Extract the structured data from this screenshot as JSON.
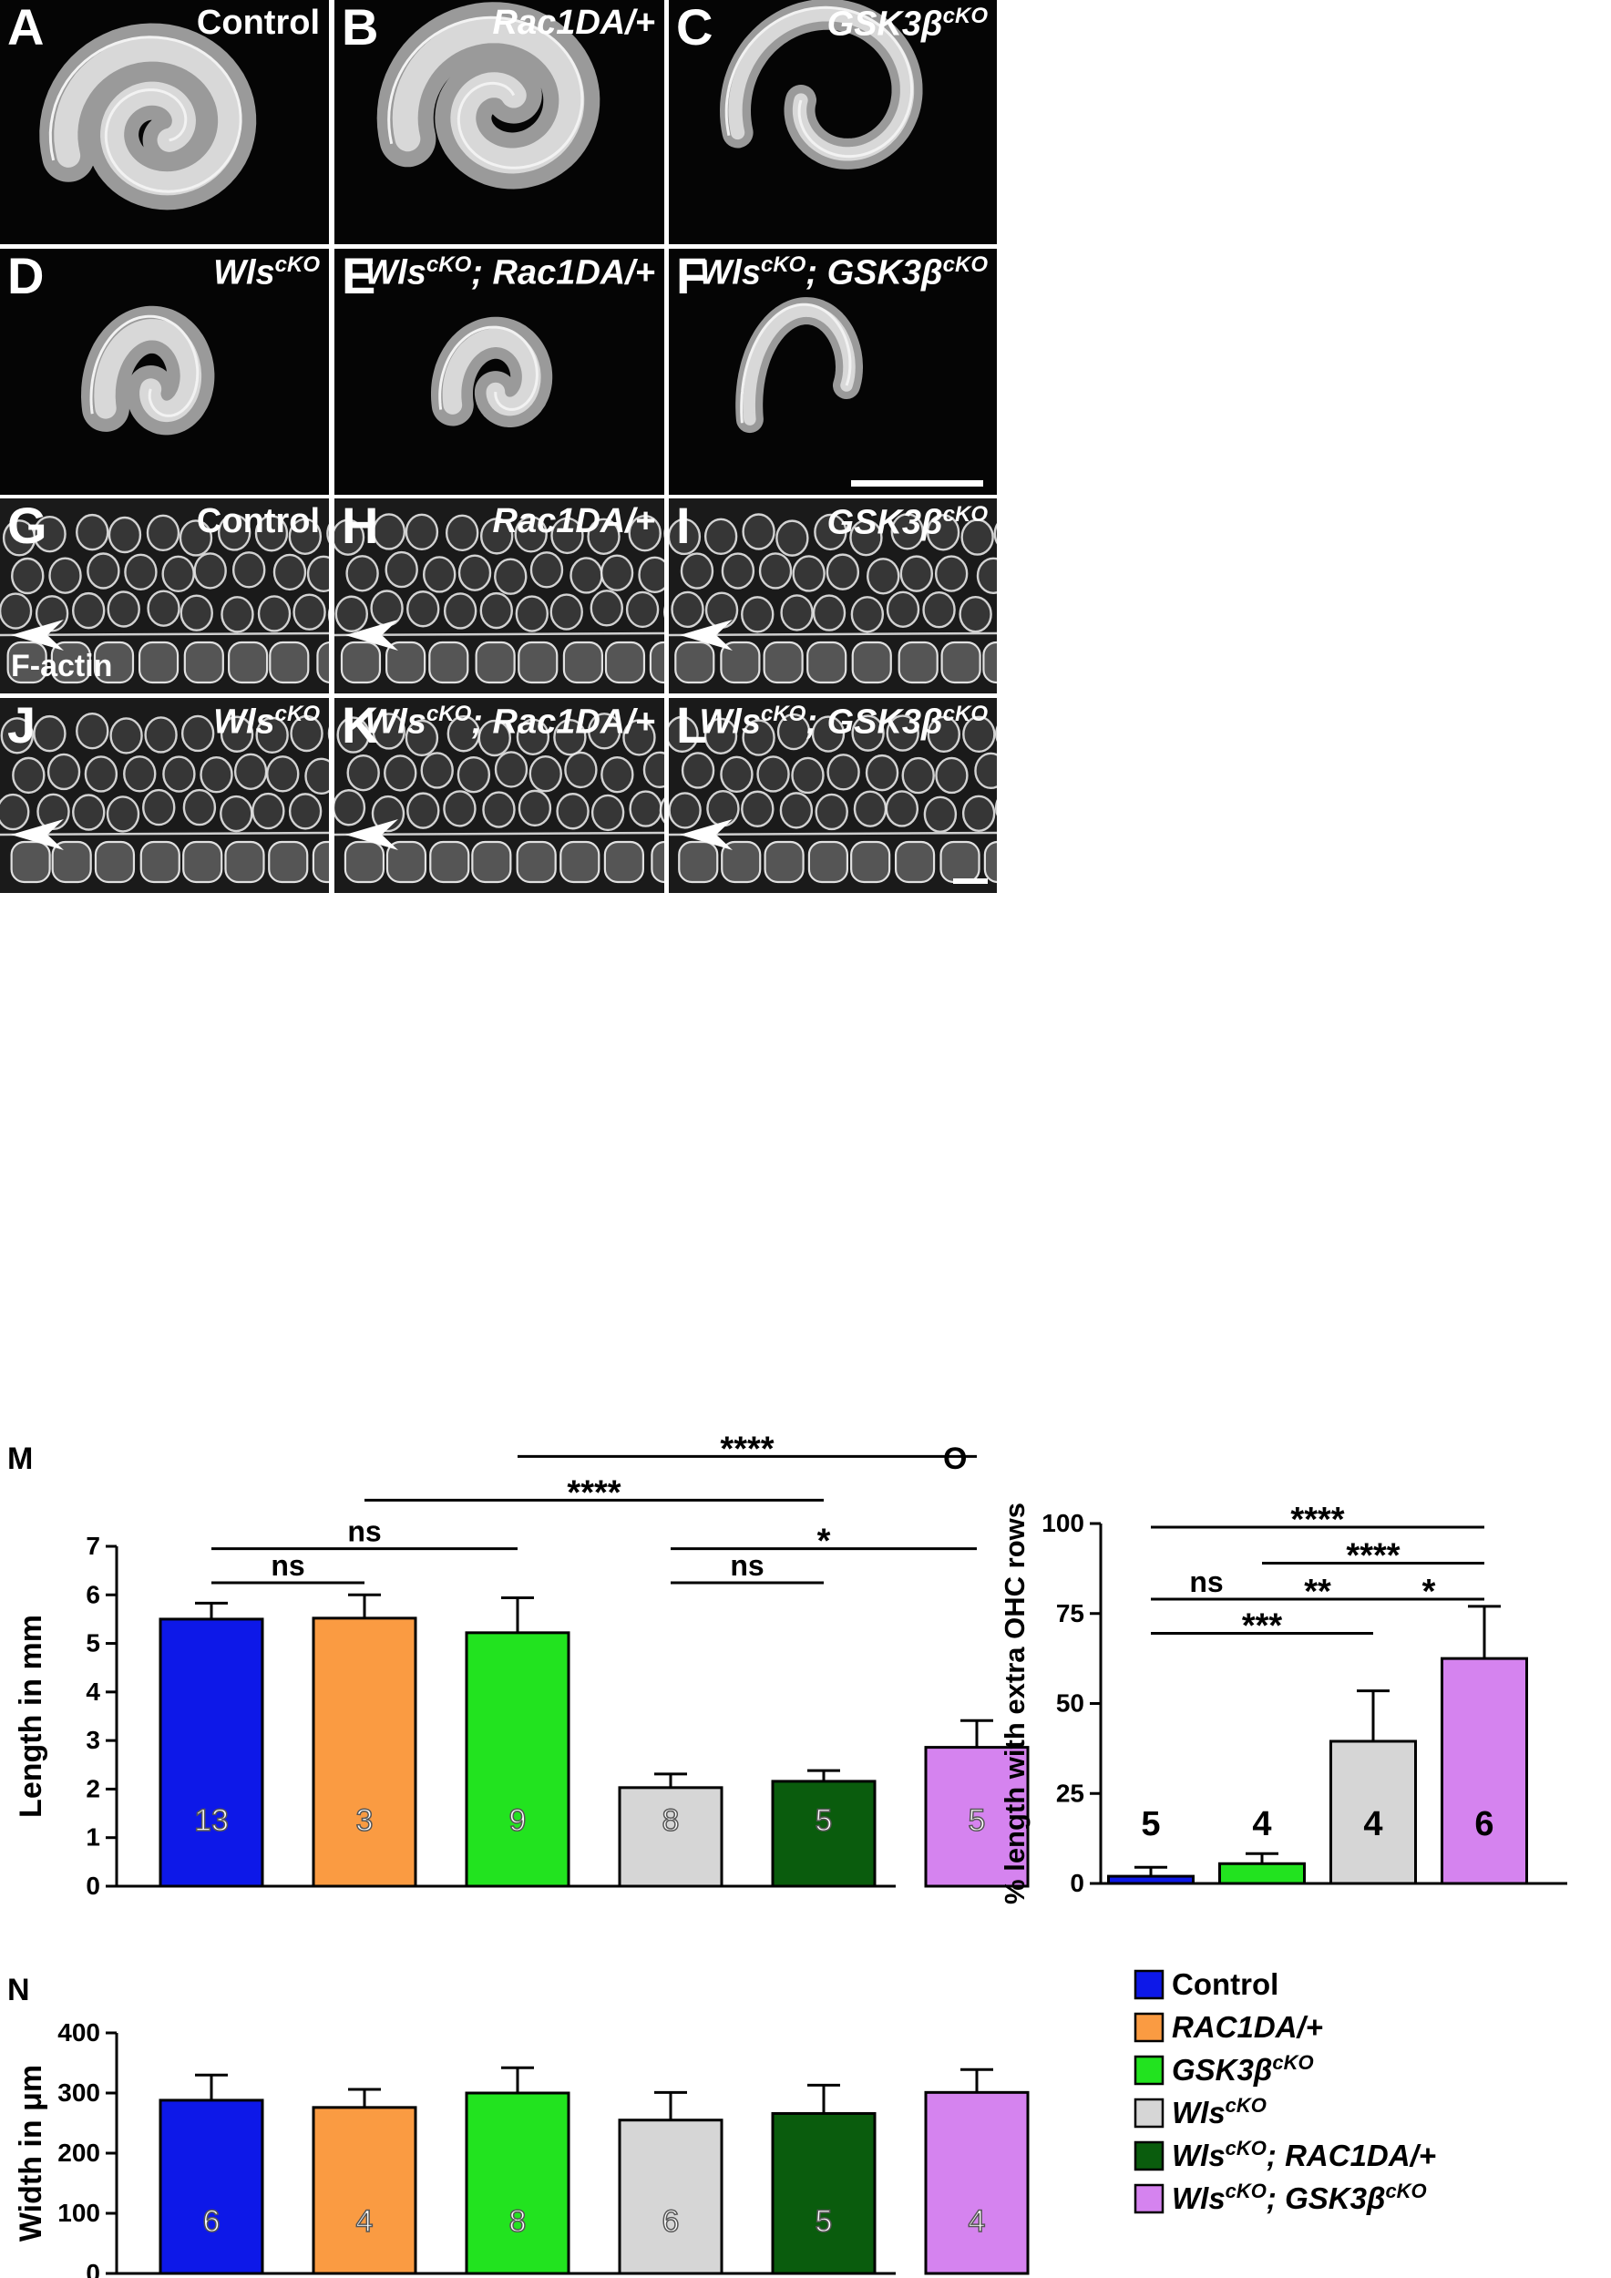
{
  "panels_top": [
    {
      "letter": "A",
      "label_base": "Control",
      "label_sup": "",
      "label_tail": "",
      "italic": false
    },
    {
      "letter": "B",
      "label_base": "Rac1DA/+",
      "label_sup": "",
      "label_tail": "",
      "italic": true
    },
    {
      "letter": "C",
      "label_base": "GSK3β",
      "label_sup": "cKO",
      "label_tail": "",
      "italic": true
    },
    {
      "letter": "D",
      "label_base": "Wls",
      "label_sup": "cKO",
      "label_tail": "",
      "italic": true
    },
    {
      "letter": "E",
      "label_base": "Wls",
      "label_sup": "cKO",
      "label_tail": "; Rac1DA/+",
      "italic": true
    },
    {
      "letter": "F",
      "label_base": "Wls",
      "label_sup": "cKO",
      "label_tail": "; GSK3β",
      "label_sup2": "cKO",
      "italic": true
    }
  ],
  "panels_bottom": [
    {
      "letter": "G",
      "label_base": "Control",
      "label_sup": "",
      "label_tail": "",
      "italic": false
    },
    {
      "letter": "H",
      "label_base": "Rac1DA/+",
      "label_sup": "",
      "label_tail": "",
      "italic": true
    },
    {
      "letter": "I",
      "label_base": "GSK3β",
      "label_sup": "cKO",
      "label_tail": "",
      "italic": true
    },
    {
      "letter": "J",
      "label_base": "Wls",
      "label_sup": "cKO",
      "label_tail": "",
      "italic": true
    },
    {
      "letter": "K",
      "label_base": "Wls",
      "label_sup": "cKO",
      "label_tail": "; Rac1DA/+",
      "italic": true
    },
    {
      "letter": "L",
      "label_base": "Wls",
      "label_sup": "cKO",
      "label_tail": "; GSK3β",
      "label_sup2": "cKO",
      "italic": true
    }
  ],
  "stain_label": "F-actin",
  "colors": {
    "control": "#0d18e8",
    "rac1da": "#fa9b42",
    "gsk3b": "#22e31f",
    "wls": "#d6d6d6",
    "wls_rac1da": "#0a5c0d",
    "wls_gsk3b": "#d583ef"
  },
  "chart_data": [
    {
      "panel": "M",
      "type": "bar",
      "ylabel": "Length in mm",
      "ylim": [
        0,
        7
      ],
      "yticks": [
        0,
        1,
        2,
        3,
        4,
        5,
        6,
        7
      ],
      "values": [
        5.5,
        5.52,
        5.22,
        2.03,
        2.16,
        2.86
      ],
      "errors": [
        0.33,
        0.48,
        0.72,
        0.28,
        0.22,
        0.55
      ],
      "n": [
        "13",
        "3",
        "9",
        "8",
        "5",
        "5"
      ],
      "colors": [
        "#0d18e8",
        "#fa9b42",
        "#22e31f",
        "#d6d6d6",
        "#0a5c0d",
        "#d583ef"
      ],
      "significance": [
        {
          "from": 0,
          "to": 1,
          "y": 6.25,
          "label": "ns"
        },
        {
          "from": 0,
          "to": 2,
          "y": 6.95,
          "label": "ns"
        },
        {
          "from": 3,
          "to": 4,
          "y": 6.25,
          "label": "ns"
        },
        {
          "from": 3,
          "to": 5,
          "y": 6.95,
          "label": "*"
        },
        {
          "from": 1,
          "to": 4,
          "y": 7.95,
          "label": "****"
        },
        {
          "from": 2,
          "to": 5,
          "y": 8.85,
          "label": "****"
        }
      ]
    },
    {
      "panel": "N",
      "type": "bar",
      "ylabel": "Width in μm",
      "ylim": [
        0,
        400
      ],
      "yticks": [
        0,
        100,
        200,
        300,
        400
      ],
      "values": [
        288,
        276,
        300,
        255,
        266,
        301
      ],
      "errors": [
        42,
        30,
        42,
        46,
        47,
        38
      ],
      "n": [
        "6",
        "4",
        "8",
        "6",
        "5",
        "4"
      ],
      "colors": [
        "#0d18e8",
        "#fa9b42",
        "#22e31f",
        "#d6d6d6",
        "#0a5c0d",
        "#d583ef"
      ]
    },
    {
      "panel": "O",
      "type": "bar",
      "ylabel": "% length with extra OHC rows",
      "ylim": [
        0,
        100
      ],
      "yticks": [
        0,
        25,
        50,
        75,
        100
      ],
      "values": [
        2,
        5.5,
        39.5,
        62.5
      ],
      "errors": [
        2.5,
        2.8,
        14,
        14.5
      ],
      "n": [
        "5",
        "4",
        "4",
        "6"
      ],
      "colors": [
        "#0d18e8",
        "#22e31f",
        "#d6d6d6",
        "#d583ef"
      ],
      "significance": [
        {
          "from": 0,
          "to": 1,
          "y": 79,
          "label": "ns"
        },
        {
          "from": 1,
          "to": 2,
          "y": 79,
          "label": "**"
        },
        {
          "from": 2,
          "to": 3,
          "y": 79,
          "label": "*"
        },
        {
          "from": 0,
          "to": 2,
          "y": 69.5,
          "label": "***"
        },
        {
          "from": 1,
          "to": 3,
          "y": 89,
          "label": "****"
        },
        {
          "from": 0,
          "to": 3,
          "y": 99,
          "label": "****"
        }
      ]
    }
  ],
  "legend": [
    {
      "base": "Control",
      "sup": "",
      "tail": "",
      "sup2": "",
      "italic": false,
      "color": "#0d18e8"
    },
    {
      "base": "RAC1DA/+",
      "sup": "",
      "tail": "",
      "sup2": "",
      "italic": true,
      "color": "#fa9b42"
    },
    {
      "base": "GSK3β",
      "sup": "cKO",
      "tail": "",
      "sup2": "",
      "italic": true,
      "color": "#22e31f"
    },
    {
      "base": "Wls",
      "sup": "cKO",
      "tail": "",
      "sup2": "",
      "italic": true,
      "color": "#d6d6d6"
    },
    {
      "base": "Wls",
      "sup": "cKO",
      "tail": "; RAC1DA/+",
      "sup2": "",
      "italic": true,
      "color": "#0a5c0d"
    },
    {
      "base": "Wls",
      "sup": "cKO",
      "tail": "; GSK3β",
      "sup2": "cKO",
      "italic": true,
      "color": "#d583ef"
    }
  ]
}
